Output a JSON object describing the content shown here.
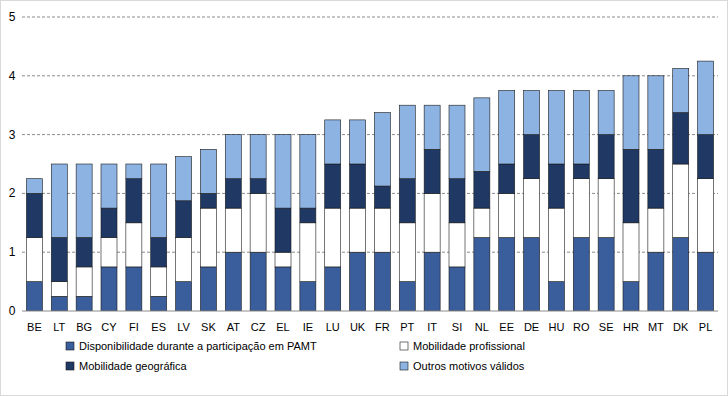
{
  "chart_data": {
    "type": "bar",
    "stacked": true,
    "grid": true,
    "legend": "bottom",
    "categories": [
      "BE",
      "LT",
      "BG",
      "CY",
      "FI",
      "ES",
      "LV",
      "SK",
      "AT",
      "CZ",
      "EL",
      "IE",
      "LU",
      "UK",
      "FR",
      "PT",
      "IT",
      "SI",
      "NL",
      "EE",
      "DE",
      "HU",
      "RO",
      "SE",
      "HR",
      "MT",
      "DK",
      "PL"
    ],
    "ylim": [
      0,
      5
    ],
    "yticks": [
      0,
      1,
      2,
      3,
      4,
      5
    ],
    "series": [
      {
        "name": "Disponibilidade durante a participação em PAMT",
        "color": "#3a5d9c",
        "values": [
          0.5,
          0.25,
          0.25,
          0.75,
          0.75,
          0.25,
          0.5,
          0.75,
          1.0,
          1.0,
          0.75,
          0.5,
          0.75,
          1.0,
          1.0,
          0.5,
          1.0,
          0.75,
          1.25,
          1.25,
          1.25,
          0.5,
          1.25,
          1.25,
          0.5,
          1.0,
          1.25,
          1.0
        ]
      },
      {
        "name": "Mobilidade profissional",
        "color": "#ffffff",
        "values": [
          0.75,
          0.25,
          0.5,
          0.5,
          0.75,
          0.5,
          0.75,
          1.0,
          0.75,
          1.0,
          0.25,
          1.0,
          1.0,
          0.75,
          0.75,
          1.0,
          1.0,
          0.75,
          0.5,
          0.75,
          1.0,
          1.25,
          1.0,
          1.0,
          1.0,
          0.75,
          1.25,
          1.25
        ]
      },
      {
        "name": "Mobilidade geográfica",
        "color": "#1f3864",
        "values": [
          0.75,
          0.75,
          0.5,
          0.5,
          0.75,
          0.5,
          0.625,
          0.25,
          0.5,
          0.25,
          0.75,
          0.25,
          0.75,
          0.75,
          0.375,
          0.75,
          0.75,
          0.75,
          0.625,
          0.5,
          0.75,
          0.75,
          0.25,
          0.75,
          1.25,
          1.0,
          0.875,
          0.75
        ]
      },
      {
        "name": "Outros motivos válidos",
        "color": "#8db3e2",
        "values": [
          0.25,
          1.25,
          1.25,
          0.75,
          0.25,
          1.25,
          0.75,
          0.75,
          0.75,
          0.75,
          1.25,
          1.25,
          0.75,
          0.75,
          1.25,
          1.25,
          0.75,
          1.25,
          1.25,
          1.25,
          0.75,
          1.25,
          1.25,
          0.75,
          1.25,
          1.25,
          0.75,
          1.25
        ]
      }
    ]
  }
}
